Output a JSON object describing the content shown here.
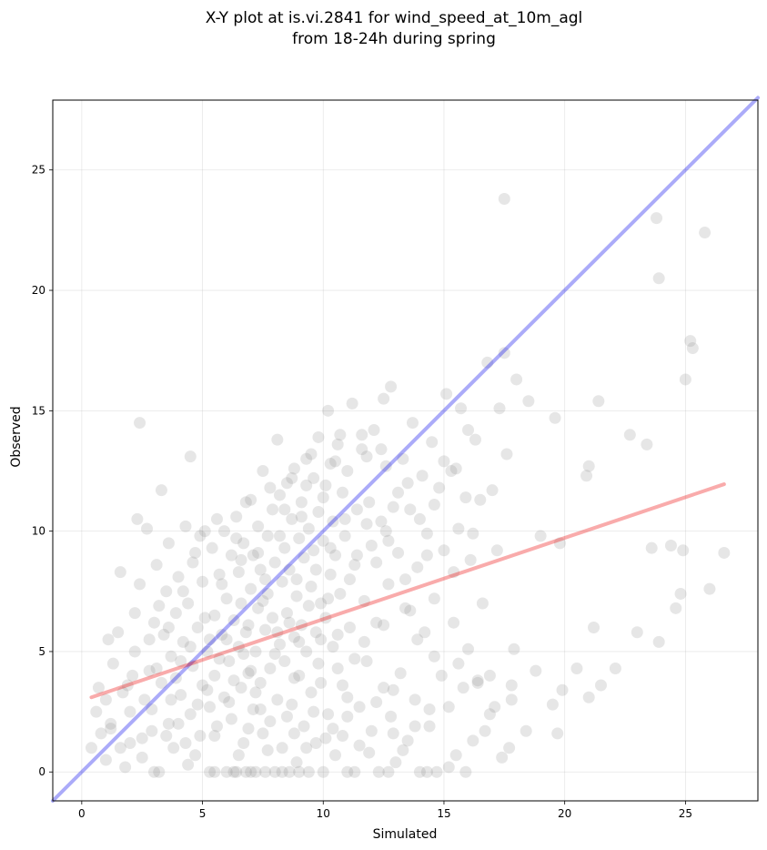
{
  "chart_data": {
    "type": "scatter",
    "title_lines": [
      "X-Y plot at is.vi.2841 for wind_speed_at_10m_agl",
      "from 18-24h during spring"
    ],
    "xlabel": "Simulated",
    "ylabel": "Observed",
    "xlim": [
      -1.2,
      28.0
    ],
    "ylim": [
      -1.2,
      27.9
    ],
    "xticks": [
      0,
      5,
      10,
      15,
      20,
      25
    ],
    "yticks": [
      0,
      5,
      10,
      15,
      20,
      25
    ],
    "grid": true,
    "identity_line": {
      "color": "#0000ee",
      "from": [
        -1.2,
        -1.2
      ],
      "to": [
        28.0,
        28.0
      ]
    },
    "regression_line": {
      "color": "#ee0000",
      "from": [
        0.4,
        3.1
      ],
      "to": [
        26.6,
        11.95
      ]
    },
    "point_color": "#808080",
    "points": [
      [
        0.4,
        1.0
      ],
      [
        0.6,
        2.5
      ],
      [
        0.7,
        3.5
      ],
      [
        0.8,
        1.6
      ],
      [
        1.0,
        0.5
      ],
      [
        1.0,
        3.0
      ],
      [
        1.1,
        5.5
      ],
      [
        1.2,
        2.0
      ],
      [
        1.3,
        4.5
      ],
      [
        1.5,
        5.8
      ],
      [
        1.6,
        8.3
      ],
      [
        1.6,
        1.0
      ],
      [
        1.7,
        3.3
      ],
      [
        1.8,
        0.2
      ],
      [
        2.0,
        2.5
      ],
      [
        2.1,
        4.0
      ],
      [
        2.2,
        6.6
      ],
      [
        2.3,
        10.5
      ],
      [
        2.4,
        14.5
      ],
      [
        2.5,
        1.4
      ],
      [
        2.6,
        3.0
      ],
      [
        2.7,
        10.1
      ],
      [
        2.8,
        5.5
      ],
      [
        2.9,
        1.7
      ],
      [
        3.0,
        6.2
      ],
      [
        3.1,
        8.6
      ],
      [
        3.2,
        0.0
      ],
      [
        3.3,
        11.7
      ],
      [
        3.3,
        3.7
      ],
      [
        3.5,
        7.5
      ],
      [
        3.6,
        2.0
      ],
      [
        3.6,
        9.5
      ],
      [
        3.7,
        4.8
      ],
      [
        3.8,
        1.0
      ],
      [
        3.9,
        6.6
      ],
      [
        4.0,
        8.1
      ],
      [
        4.1,
        3.2
      ],
      [
        4.2,
        5.4
      ],
      [
        4.3,
        10.2
      ],
      [
        4.4,
        0.3
      ],
      [
        4.4,
        7.0
      ],
      [
        4.5,
        2.4
      ],
      [
        4.5,
        13.1
      ],
      [
        4.6,
        4.4
      ],
      [
        4.7,
        9.1
      ],
      [
        4.8,
        6.0
      ],
      [
        4.9,
        1.5
      ],
      [
        5.0,
        3.6
      ],
      [
        5.0,
        7.9
      ],
      [
        5.1,
        10.0
      ],
      [
        5.2,
        5.0
      ],
      [
        5.3,
        2.7
      ],
      [
        5.3,
        0.0
      ],
      [
        5.4,
        9.3
      ],
      [
        5.5,
        6.5
      ],
      [
        5.5,
        4.0
      ],
      [
        5.6,
        1.9
      ],
      [
        5.7,
        8.2
      ],
      [
        5.8,
        5.7
      ],
      [
        5.9,
        10.0
      ],
      [
        5.9,
        3.1
      ],
      [
        6.0,
        7.2
      ],
      [
        6.0,
        0.0
      ],
      [
        6.1,
        4.6
      ],
      [
        6.2,
        9.0
      ],
      [
        6.2,
        2.2
      ],
      [
        6.3,
        6.3
      ],
      [
        6.4,
        10.6
      ],
      [
        6.4,
        0.0
      ],
      [
        6.5,
        5.2
      ],
      [
        6.5,
        8.3
      ],
      [
        6.6,
        3.5
      ],
      [
        6.6,
        7.0
      ],
      [
        6.7,
        1.2
      ],
      [
        6.7,
        9.5
      ],
      [
        6.8,
        5.8
      ],
      [
        6.8,
        0.0
      ],
      [
        6.9,
        4.1
      ],
      [
        7.0,
        11.3
      ],
      [
        7.0,
        7.6
      ],
      [
        7.1,
        2.6
      ],
      [
        7.1,
        9.0
      ],
      [
        7.2,
        5.0
      ],
      [
        7.2,
        0.0
      ],
      [
        7.3,
        6.8
      ],
      [
        7.3,
        10.2
      ],
      [
        7.4,
        3.7
      ],
      [
        7.4,
        8.4
      ],
      [
        7.5,
        1.6
      ],
      [
        7.5,
        12.5
      ],
      [
        7.6,
        5.9
      ],
      [
        7.6,
        0.0
      ],
      [
        7.7,
        7.4
      ],
      [
        7.7,
        9.8
      ],
      [
        7.8,
        4.3
      ],
      [
        7.8,
        2.1
      ],
      [
        7.9,
        10.9
      ],
      [
        7.9,
        6.4
      ],
      [
        8.0,
        8.7
      ],
      [
        8.0,
        0.0
      ],
      [
        8.1,
        3.0
      ],
      [
        8.1,
        13.8
      ],
      [
        8.2,
        5.3
      ],
      [
        8.2,
        11.5
      ],
      [
        8.3,
        7.9
      ],
      [
        8.3,
        1.0
      ],
      [
        8.4,
        9.3
      ],
      [
        8.4,
        4.6
      ],
      [
        8.5,
        12.0
      ],
      [
        8.5,
        6.6
      ],
      [
        8.6,
        0.0
      ],
      [
        8.6,
        8.4
      ],
      [
        8.7,
        2.8
      ],
      [
        8.7,
        10.5
      ],
      [
        8.8,
        5.6
      ],
      [
        8.8,
        12.6
      ],
      [
        8.9,
        7.3
      ],
      [
        8.9,
        0.4
      ],
      [
        9.0,
        9.7
      ],
      [
        9.0,
        4.0
      ],
      [
        9.1,
        11.2
      ],
      [
        9.1,
        6.1
      ],
      [
        9.2,
        1.9
      ],
      [
        9.2,
        8.9
      ],
      [
        9.3,
        13.0
      ],
      [
        9.3,
        5.0
      ],
      [
        9.4,
        10.1
      ],
      [
        9.4,
        0.0
      ],
      [
        9.5,
        7.7
      ],
      [
        9.5,
        3.3
      ],
      [
        9.6,
        12.2
      ],
      [
        9.6,
        9.2
      ],
      [
        9.7,
        5.8
      ],
      [
        9.7,
        1.2
      ],
      [
        9.8,
        10.8
      ],
      [
        9.8,
        13.9
      ],
      [
        9.9,
        7.0
      ],
      [
        9.9,
        3.7
      ],
      [
        10.0,
        9.6
      ],
      [
        10.0,
        0.0
      ],
      [
        10.1,
        11.9
      ],
      [
        10.1,
        6.4
      ],
      [
        10.2,
        15.0
      ],
      [
        10.2,
        2.4
      ],
      [
        10.3,
        8.2
      ],
      [
        10.3,
        12.8
      ],
      [
        10.4,
        5.2
      ],
      [
        10.4,
        10.4
      ],
      [
        10.5,
        0.7
      ],
      [
        10.5,
        9.0
      ],
      [
        10.6,
        13.6
      ],
      [
        10.6,
        4.3
      ],
      [
        10.7,
        7.4
      ],
      [
        10.8,
        11.6
      ],
      [
        10.8,
        1.5
      ],
      [
        10.9,
        9.8
      ],
      [
        11.0,
        3.1
      ],
      [
        11.0,
        12.5
      ],
      [
        11.1,
        6.0
      ],
      [
        11.2,
        15.3
      ],
      [
        11.3,
        8.6
      ],
      [
        11.3,
        0.0
      ],
      [
        11.4,
        10.9
      ],
      [
        11.5,
        2.7
      ],
      [
        11.6,
        13.4
      ],
      [
        11.7,
        7.1
      ],
      [
        11.8,
        4.6
      ],
      [
        11.9,
        11.2
      ],
      [
        12.0,
        1.7
      ],
      [
        12.0,
        9.4
      ],
      [
        12.1,
        14.2
      ],
      [
        12.2,
        6.2
      ],
      [
        12.3,
        0.0
      ],
      [
        12.4,
        10.4
      ],
      [
        12.5,
        3.5
      ],
      [
        12.5,
        15.5
      ],
      [
        12.6,
        12.7
      ],
      [
        12.7,
        7.8
      ],
      [
        12.8,
        2.3
      ],
      [
        12.9,
        11.0
      ],
      [
        13.0,
        0.4
      ],
      [
        13.1,
        9.1
      ],
      [
        13.2,
        4.1
      ],
      [
        13.3,
        13.0
      ],
      [
        13.4,
        6.8
      ],
      [
        13.5,
        1.3
      ],
      [
        13.6,
        10.9
      ],
      [
        13.7,
        14.5
      ],
      [
        13.8,
        3.0
      ],
      [
        13.9,
        8.5
      ],
      [
        14.0,
        0.0
      ],
      [
        14.1,
        12.3
      ],
      [
        14.2,
        5.8
      ],
      [
        14.3,
        9.9
      ],
      [
        14.4,
        1.9
      ],
      [
        14.5,
        13.7
      ],
      [
        14.6,
        7.2
      ],
      [
        14.7,
        0.0
      ],
      [
        14.8,
        11.8
      ],
      [
        14.9,
        4.0
      ],
      [
        15.0,
        9.2
      ],
      [
        15.1,
        15.7
      ],
      [
        15.2,
        2.7
      ],
      [
        15.3,
        12.5
      ],
      [
        15.4,
        6.2
      ],
      [
        15.5,
        0.7
      ],
      [
        15.6,
        10.1
      ],
      [
        15.7,
        15.1
      ],
      [
        15.8,
        3.5
      ],
      [
        15.9,
        11.4
      ],
      [
        16.0,
        5.1
      ],
      [
        16.1,
        8.8
      ],
      [
        16.2,
        1.3
      ],
      [
        16.3,
        13.8
      ],
      [
        16.4,
        3.8
      ],
      [
        16.5,
        11.3
      ],
      [
        16.6,
        7.0
      ],
      [
        16.7,
        1.7
      ],
      [
        16.8,
        17.0
      ],
      [
        16.9,
        4.0
      ],
      [
        17.0,
        11.7
      ],
      [
        17.1,
        2.7
      ],
      [
        17.2,
        9.2
      ],
      [
        17.3,
        15.1
      ],
      [
        17.4,
        0.6
      ],
      [
        17.5,
        17.4
      ],
      [
        17.5,
        23.8
      ],
      [
        17.6,
        13.2
      ],
      [
        17.7,
        1.0
      ],
      [
        17.8,
        3.0
      ],
      [
        17.9,
        5.1
      ],
      [
        18.0,
        16.3
      ],
      [
        18.4,
        1.7
      ],
      [
        18.5,
        15.4
      ],
      [
        18.8,
        4.2
      ],
      [
        19.0,
        9.8
      ],
      [
        19.5,
        2.8
      ],
      [
        19.6,
        14.7
      ],
      [
        19.7,
        1.6
      ],
      [
        19.8,
        9.5
      ],
      [
        19.9,
        3.4
      ],
      [
        20.5,
        4.3
      ],
      [
        20.9,
        12.3
      ],
      [
        21.0,
        3.1
      ],
      [
        21.0,
        12.7
      ],
      [
        21.2,
        6.0
      ],
      [
        21.4,
        15.4
      ],
      [
        21.5,
        3.6
      ],
      [
        22.1,
        4.3
      ],
      [
        22.7,
        14.0
      ],
      [
        23.0,
        5.8
      ],
      [
        23.4,
        13.6
      ],
      [
        23.6,
        9.3
      ],
      [
        23.8,
        23.0
      ],
      [
        23.9,
        20.5
      ],
      [
        23.9,
        5.4
      ],
      [
        24.4,
        9.4
      ],
      [
        24.6,
        6.8
      ],
      [
        24.8,
        7.4
      ],
      [
        24.9,
        9.2
      ],
      [
        25.0,
        16.3
      ],
      [
        25.2,
        17.9
      ],
      [
        25.3,
        17.6
      ],
      [
        25.8,
        22.4
      ],
      [
        26.0,
        7.6
      ],
      [
        26.6,
        9.1
      ],
      [
        5.5,
        0.0
      ],
      [
        6.3,
        0.0
      ],
      [
        7.0,
        0.0
      ],
      [
        8.3,
        0.0
      ],
      [
        9.0,
        0.0
      ],
      [
        11.0,
        0.0
      ],
      [
        12.7,
        0.0
      ],
      [
        14.3,
        0.0
      ],
      [
        15.9,
        0.0
      ],
      [
        3.0,
        0.0
      ],
      [
        2.0,
        1.2
      ],
      [
        2.5,
        0.6
      ],
      [
        3.5,
        1.5
      ],
      [
        4.0,
        2.0
      ],
      [
        4.8,
        2.8
      ],
      [
        5.2,
        3.4
      ],
      [
        6.1,
        2.9
      ],
      [
        6.9,
        1.8
      ],
      [
        7.7,
        0.9
      ],
      [
        8.8,
        1.6
      ],
      [
        9.6,
        2.5
      ],
      [
        10.4,
        1.8
      ],
      [
        11.5,
        1.1
      ],
      [
        12.2,
        2.9
      ],
      [
        13.3,
        0.9
      ],
      [
        14.4,
        2.6
      ],
      [
        15.2,
        0.2
      ],
      [
        3.1,
        4.3
      ],
      [
        3.9,
        3.9
      ],
      [
        4.5,
        5.2
      ],
      [
        5.7,
        4.7
      ],
      [
        6.3,
        3.8
      ],
      [
        7.2,
        3.3
      ],
      [
        8.0,
        4.9
      ],
      [
        8.8,
        3.9
      ],
      [
        9.9,
        5.5
      ],
      [
        10.8,
        3.6
      ],
      [
        11.7,
        5.4
      ],
      [
        12.9,
        3.4
      ],
      [
        13.9,
        5.5
      ],
      [
        14.6,
        4.8
      ],
      [
        15.6,
        4.5
      ],
      [
        16.4,
        3.7
      ],
      [
        16.9,
        2.4
      ],
      [
        17.8,
        3.6
      ],
      [
        2.4,
        7.8
      ],
      [
        3.6,
        6.0
      ],
      [
        4.2,
        7.5
      ],
      [
        5.1,
        6.4
      ],
      [
        6.0,
        5.5
      ],
      [
        6.9,
        6.1
      ],
      [
        7.5,
        7.1
      ],
      [
        8.6,
        6.2
      ],
      [
        9.4,
        6.9
      ],
      [
        10.2,
        7.2
      ],
      [
        11.1,
        8.0
      ],
      [
        12.2,
        8.7
      ],
      [
        13.4,
        8.0
      ],
      [
        14.3,
        9.0
      ],
      [
        15.4,
        8.3
      ],
      [
        4.9,
        9.8
      ],
      [
        5.6,
        10.5
      ],
      [
        6.6,
        8.8
      ],
      [
        7.3,
        9.1
      ],
      [
        8.2,
        9.8
      ],
      [
        9.1,
        10.6
      ],
      [
        10.0,
        11.4
      ],
      [
        10.9,
        10.5
      ],
      [
        11.8,
        10.3
      ],
      [
        12.6,
        10.0
      ],
      [
        13.5,
        12.0
      ],
      [
        14.6,
        11.1
      ],
      [
        15.5,
        12.6
      ],
      [
        16.2,
        9.9
      ],
      [
        8.7,
        12.2
      ],
      [
        9.5,
        13.2
      ],
      [
        10.5,
        12.9
      ],
      [
        11.6,
        14.0
      ],
      [
        12.4,
        13.4
      ],
      [
        13.1,
        11.6
      ],
      [
        14.0,
        10.5
      ],
      [
        15.0,
        12.9
      ],
      [
        16.0,
        14.2
      ],
      [
        12.8,
        16.0
      ],
      [
        11.8,
        13.1
      ],
      [
        10.7,
        14.0
      ],
      [
        9.3,
        11.9
      ],
      [
        8.4,
        10.9
      ],
      [
        7.8,
        11.8
      ],
      [
        6.8,
        11.2
      ],
      [
        1.2,
        1.8
      ],
      [
        1.9,
        3.6
      ],
      [
        2.9,
        2.6
      ],
      [
        3.7,
        3.0
      ],
      [
        4.3,
        1.2
      ],
      [
        4.7,
        0.7
      ],
      [
        5.5,
        1.5
      ],
      [
        6.5,
        0.7
      ],
      [
        7.4,
        2.6
      ],
      [
        8.5,
        2.3
      ],
      [
        9.3,
        1.0
      ],
      [
        10.1,
        1.4
      ],
      [
        11.0,
        2.3
      ],
      [
        11.9,
        0.8
      ],
      [
        12.9,
        1.6
      ],
      [
        13.8,
        1.9
      ],
      [
        2.2,
        5.0
      ],
      [
        2.8,
        4.2
      ],
      [
        3.4,
        5.7
      ],
      [
        4.1,
        4.6
      ],
      [
        5.3,
        5.5
      ],
      [
        6.7,
        4.9
      ],
      [
        7.0,
        4.2
      ],
      [
        8.1,
        5.8
      ],
      [
        9.0,
        5.4
      ],
      [
        9.8,
        4.5
      ],
      [
        10.6,
        5.7
      ],
      [
        11.3,
        4.7
      ],
      [
        12.5,
        6.1
      ],
      [
        13.6,
        6.7
      ],
      [
        3.2,
        6.9
      ],
      [
        4.6,
        8.7
      ],
      [
        5.8,
        7.8
      ],
      [
        6.4,
        9.7
      ],
      [
        7.6,
        8.0
      ],
      [
        8.9,
        8.0
      ],
      [
        9.7,
        8.4
      ],
      [
        10.3,
        9.3
      ],
      [
        11.4,
        9.0
      ],
      [
        12.7,
        9.6
      ]
    ]
  }
}
